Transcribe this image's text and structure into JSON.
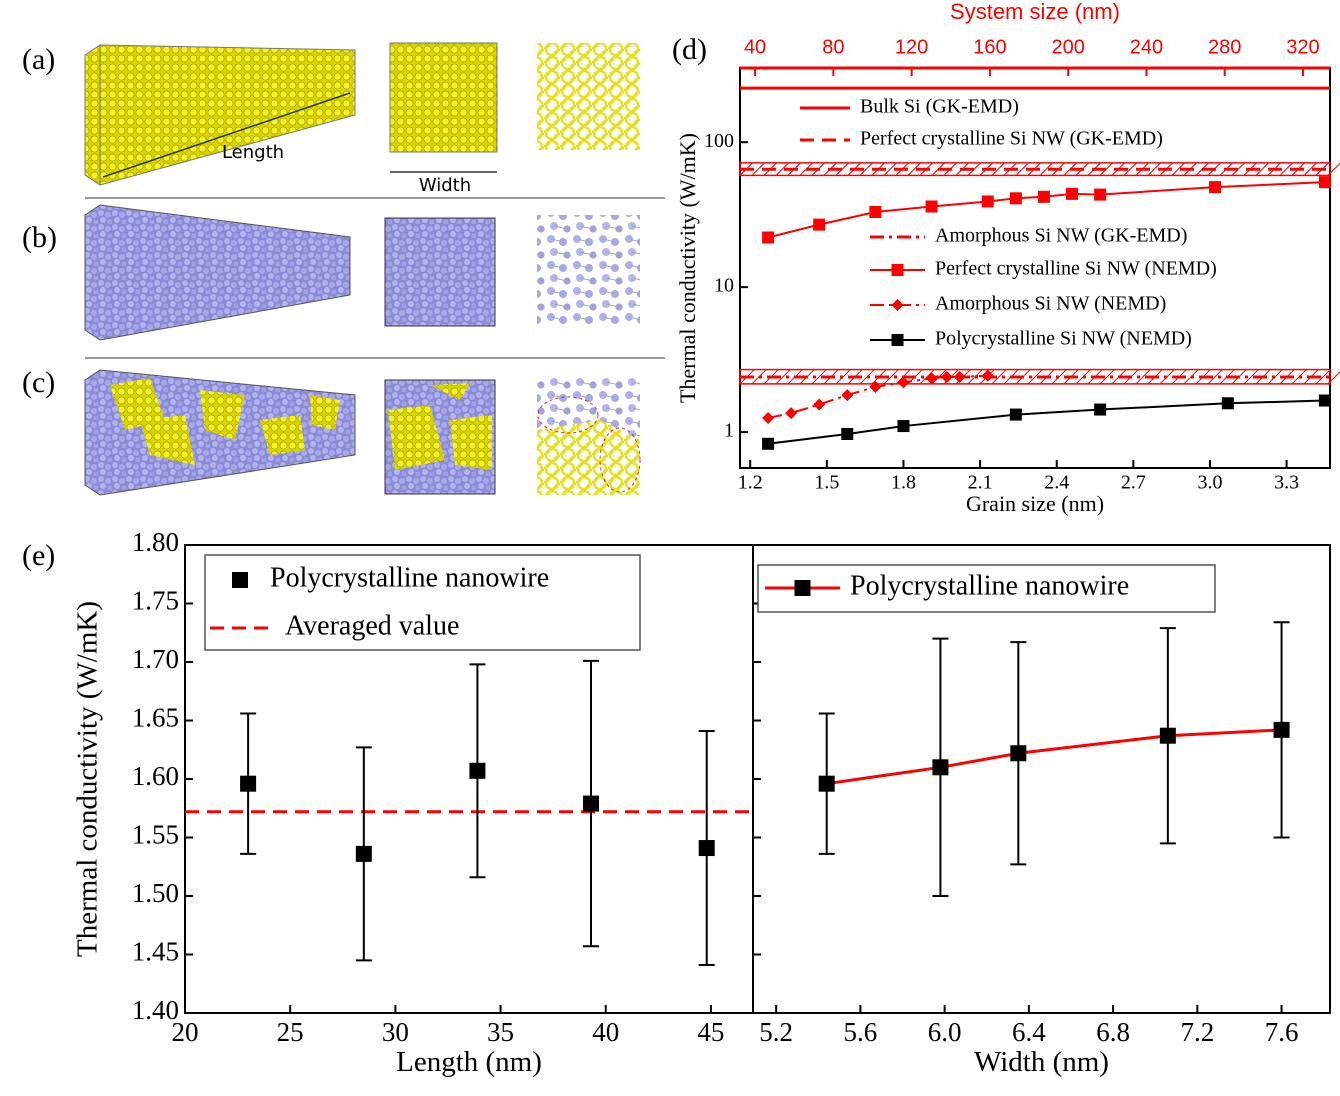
{
  "figure": {
    "panel_labels": [
      "(a)",
      "(b)",
      "(c)",
      "(d)",
      "(e)"
    ],
    "annotations": {
      "length": "Length",
      "width": "Width"
    }
  },
  "chart_data": [
    {
      "type": "line",
      "log_y": true,
      "ylabel": "Thermal conductivity (W/mK)",
      "xlabel": "Grain size (nm)",
      "x2label": "System size (nm)",
      "xlim": [
        1.16,
        3.47
      ],
      "xticks": [
        1.2,
        1.5,
        1.8,
        2.1,
        2.4,
        2.7,
        {
          "value": 3.0,
          "label": "3.0"
        },
        3.3
      ],
      "x2lim": [
        32.3,
        333.8
      ],
      "x2ticks": [
        40,
        80,
        120,
        160,
        200,
        240,
        280,
        320
      ],
      "x2color": "#ff0000",
      "ylim": [
        0.565,
        325
      ],
      "yticks": [
        1,
        10,
        100
      ],
      "hlines": [
        {
          "name": "Bulk Si (GK-EMD)",
          "value": 236,
          "color": "#ff0000",
          "style": "solid"
        },
        {
          "name": "Perfect crystalline Si NW (GK-EMD)",
          "value": 65,
          "band": [
            59,
            72
          ],
          "color": "#ff0000",
          "style": "dashed"
        },
        {
          "name": "Amorphous Si NW (GK-EMD)",
          "value": 2.4,
          "band": [
            2.15,
            2.7
          ],
          "color": "#ff0000",
          "style": "dashdot"
        }
      ],
      "series": [
        {
          "name": "Perfect crystalline Si NW (NEMD)",
          "color": "#ff0000",
          "marker": "square",
          "x": [
            1.27,
            1.47,
            1.69,
            1.91,
            2.13,
            2.24,
            2.35,
            2.46,
            2.57,
            3.02,
            3.45
          ],
          "values": [
            22,
            27,
            33,
            36,
            39,
            41,
            42,
            44,
            43.5,
            49,
            53
          ]
        },
        {
          "name": "Amorphous Si NW (NEMD)",
          "color": "#ff0000",
          "marker": "diamond",
          "style": "dashdot",
          "x": [
            1.27,
            1.36,
            1.47,
            1.58,
            1.69,
            1.8,
            1.91,
            1.97,
            2.02,
            2.13
          ],
          "values": [
            1.25,
            1.35,
            1.55,
            1.8,
            2.05,
            2.2,
            2.35,
            2.4,
            2.4,
            2.45
          ]
        },
        {
          "name": "Polycrystalline Si NW (NEMD)",
          "color": "#000000",
          "marker": "square",
          "x": [
            1.27,
            1.58,
            1.8,
            2.24,
            2.57,
            3.07,
            3.45
          ],
          "values": [
            0.83,
            0.97,
            1.1,
            1.32,
            1.43,
            1.58,
            1.65
          ]
        }
      ]
    },
    {
      "type": "scatter",
      "ylabel": "Thermal conductivity (W/mK)",
      "xlabel": "Length (nm)",
      "xlim": [
        20,
        47
      ],
      "xticks": [
        20,
        25,
        30,
        35,
        40,
        45
      ],
      "ylim": [
        1.4,
        1.8
      ],
      "yticks": [
        {
          "value": 1.4,
          "label": "1.40"
        },
        {
          "value": 1.45,
          "label": "1.45"
        },
        {
          "value": 1.5,
          "label": "1.50"
        },
        {
          "value": 1.55,
          "label": "1.55"
        },
        {
          "value": 1.6,
          "label": "1.60"
        },
        {
          "value": 1.65,
          "label": "1.65"
        },
        {
          "value": 1.7,
          "label": "1.70"
        },
        {
          "value": 1.75,
          "label": "1.75"
        },
        {
          "value": 1.8,
          "label": "1.80"
        }
      ],
      "series": [
        {
          "name": "Polycrystalline nanowire",
          "color": "#000000",
          "marker": "square",
          "line": false,
          "x": [
            23,
            28.5,
            33.9,
            39.3,
            44.8
          ],
          "values": [
            1.596,
            1.536,
            1.607,
            1.579,
            1.541
          ],
          "errors": [
            0.06,
            0.091,
            0.091,
            0.122,
            0.1
          ]
        }
      ],
      "hlines": [
        {
          "name": "Averaged value",
          "value": 1.572,
          "color": "#ff0000",
          "style": "dashed"
        }
      ]
    },
    {
      "type": "line",
      "xlabel": "Width (nm)",
      "xlim": [
        5.09,
        7.83
      ],
      "xticks": [
        5.2,
        5.6,
        {
          "value": 6.0,
          "label": "6.0"
        },
        6.4,
        6.8,
        7.2,
        7.6
      ],
      "ylim": [
        1.4,
        1.8
      ],
      "yticks": [
        1.4,
        1.45,
        1.5,
        1.55,
        1.6,
        1.65,
        1.7,
        1.75,
        1.8
      ],
      "series": [
        {
          "name": "Polycrystalline nanowire",
          "color": "#ff0000",
          "marker": "square",
          "marker_color": "#000000",
          "x": [
            5.44,
            5.98,
            6.35,
            7.06,
            7.6
          ],
          "values": [
            1.596,
            1.61,
            1.622,
            1.637,
            1.642
          ],
          "errors": [
            0.06,
            0.11,
            0.095,
            0.092,
            0.092
          ]
        }
      ]
    }
  ]
}
